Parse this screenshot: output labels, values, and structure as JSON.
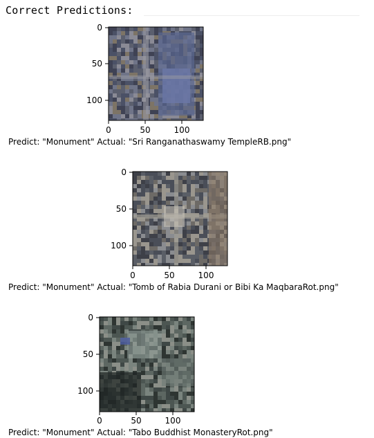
{
  "header": {
    "title": "Correct Predictions:"
  },
  "plots": [
    {
      "caption": "Predict: \"Monument\" Actual: \"Sri Ranganathaswamy TempleRB.png\"",
      "y_ticks": [
        "0",
        "50",
        "100"
      ],
      "x_ticks": [
        "0",
        "50",
        "100"
      ],
      "image_desc": "aerial-temple-complex"
    },
    {
      "caption": "Predict: \"Monument\" Actual: \"Tomb of Rabia Durani or Bibi Ka MaqbaraRot.png\"",
      "y_ticks": [
        "0",
        "50",
        "100"
      ],
      "x_ticks": [
        "0",
        "50",
        "100"
      ],
      "image_desc": "aerial-tomb-garden"
    },
    {
      "caption": "Predict: \"Monument\" Actual: \"Tabo Buddhist MonasteryRot.png\"",
      "y_ticks": [
        "0",
        "50",
        "100"
      ],
      "x_ticks": [
        "0",
        "50",
        "100"
      ],
      "image_desc": "aerial-monastery-valley"
    }
  ],
  "colors": {
    "temple_palette": [
      "#5b5f6e",
      "#6f7488",
      "#4b5166",
      "#7d7466",
      "#8a8a95",
      "#3f4254"
    ],
    "tomb_palette": [
      "#5a5e66",
      "#8a8c90",
      "#6d6a66",
      "#4a4e58",
      "#9a968e",
      "#3e4048"
    ],
    "monastery_palette": [
      "#3f4846",
      "#5d6762",
      "#2e3532",
      "#7a847e",
      "#4c5652",
      "#8b8f88"
    ]
  }
}
